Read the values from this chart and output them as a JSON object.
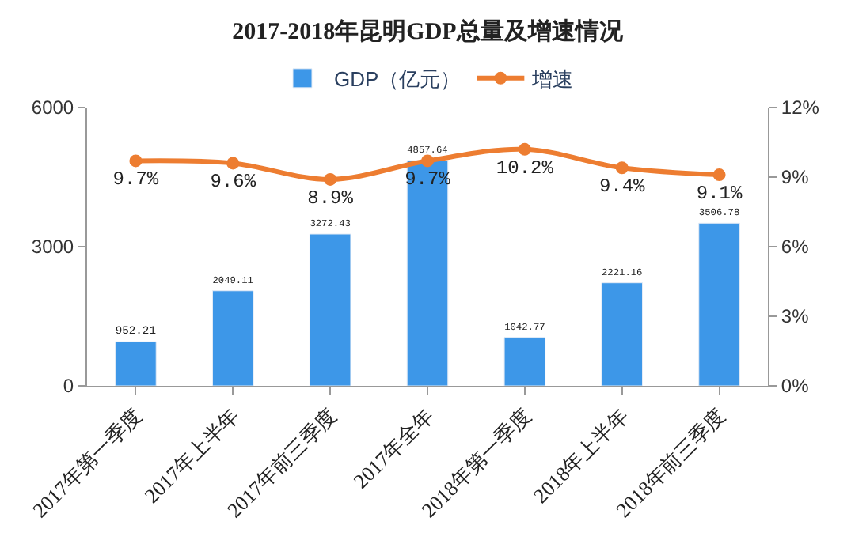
{
  "chart_data": {
    "type": "bar",
    "title": "2017-2018年昆明GDP总量及增速情况",
    "categories": [
      "2017年第一季度",
      "2017年上半年",
      "2017年前三季度",
      "2017年全年",
      "2018年第一季度",
      "2018年上半年",
      "2018年前三季度"
    ],
    "series": [
      {
        "name": "GDP（亿元）",
        "color": "#3d97e8",
        "values": [
          952.21,
          2049.11,
          3272.43,
          4857.64,
          1042.77,
          2221.16,
          3506.78
        ],
        "value_labels": [
          "952.21",
          "2049.11",
          "3272.43",
          "4857.64",
          "1042.77",
          "2221.16",
          "3506.78"
        ]
      },
      {
        "name": "增速",
        "type": "line",
        "axis": "y2",
        "color": "#ed7d31",
        "values": [
          9.7,
          9.6,
          8.9,
          9.7,
          10.2,
          9.4,
          9.1
        ],
        "value_labels": [
          "9.7%",
          "9.6%",
          "8.9%",
          "9.7%",
          "10.2%",
          "9.4%",
          "9.1%"
        ]
      }
    ],
    "ylim": [
      0,
      6000
    ],
    "yticks": [
      0,
      3000,
      6000
    ],
    "y2lim": [
      0,
      12
    ],
    "y2ticks": [
      {
        "value": 0,
        "label": "0%"
      },
      {
        "value": 3,
        "label": "3%"
      },
      {
        "value": 6,
        "label": "6%"
      },
      {
        "value": 9,
        "label": "9%"
      },
      {
        "value": 12,
        "label": "12%"
      }
    ],
    "legend": "top",
    "marker": "circle",
    "line_style": "solid"
  }
}
